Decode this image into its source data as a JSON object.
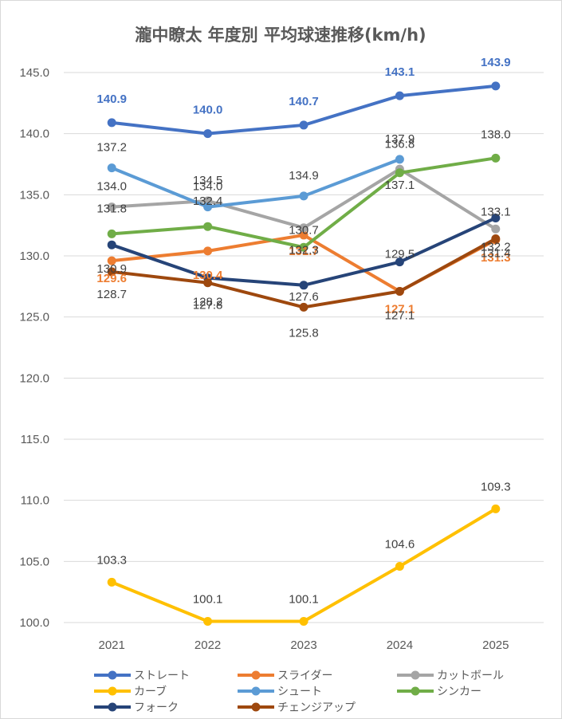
{
  "chart_data": {
    "type": "line",
    "title": "瀧中瞭太 年度別 平均球速推移(km/h)",
    "xlabel": "",
    "ylabel": "",
    "categories": [
      "2021",
      "2022",
      "2023",
      "2024",
      "2025"
    ],
    "ylim": [
      100,
      145
    ],
    "yticks": [
      "100.0",
      "105.0",
      "110.0",
      "115.0",
      "120.0",
      "125.0",
      "130.0",
      "135.0",
      "140.0",
      "145.0"
    ],
    "grid": true,
    "legend_position": "bottom",
    "series": [
      {
        "name": "ストレート",
        "color": "#4472C4",
        "values": [
          140.9,
          140.0,
          140.7,
          143.1,
          143.9
        ],
        "labels": [
          "140.9",
          "140.0",
          "140.7",
          "143.1",
          "143.9"
        ]
      },
      {
        "name": "スライダー",
        "color": "#ED7D31",
        "values": [
          129.6,
          130.4,
          131.7,
          127.1,
          131.3
        ],
        "labels": [
          "129.6",
          "130.4",
          "131.7",
          "127.1",
          "131.3"
        ]
      },
      {
        "name": "カットボール",
        "color": "#A5A5A5",
        "values": [
          134.0,
          134.5,
          132.3,
          137.1,
          132.2
        ],
        "labels": [
          "134.0",
          "134.5",
          "132.3",
          "137.1",
          "132.2"
        ]
      },
      {
        "name": "カーブ",
        "color": "#FFC000",
        "values": [
          103.3,
          100.1,
          100.1,
          104.6,
          109.3
        ],
        "labels": [
          "103.3",
          "100.1",
          "100.1",
          "104.6",
          "109.3"
        ]
      },
      {
        "name": "シュート",
        "color": "#5B9BD5",
        "values": [
          137.2,
          134.0,
          134.9,
          137.9,
          null
        ],
        "labels": [
          "137.2",
          "134.0",
          "134.9",
          "137.9",
          ""
        ]
      },
      {
        "name": "シンカー",
        "color": "#70AD47",
        "values": [
          131.8,
          132.4,
          130.7,
          136.8,
          138.0
        ],
        "labels": [
          "131.8",
          "132.4",
          "130.7",
          "136.8",
          "138.0"
        ]
      },
      {
        "name": "フォーク",
        "color": "#264478",
        "values": [
          130.9,
          128.2,
          127.6,
          129.5,
          133.1
        ],
        "labels": [
          "130.9",
          "128.2",
          "127.6",
          "129.5",
          "133.1"
        ]
      },
      {
        "name": "チェンジアップ",
        "color": "#9E480E",
        "values": [
          128.7,
          127.8,
          125.8,
          127.1,
          131.4
        ],
        "labels": [
          "128.7",
          "127.8",
          "125.8",
          "127.1",
          "131.4"
        ]
      }
    ]
  }
}
